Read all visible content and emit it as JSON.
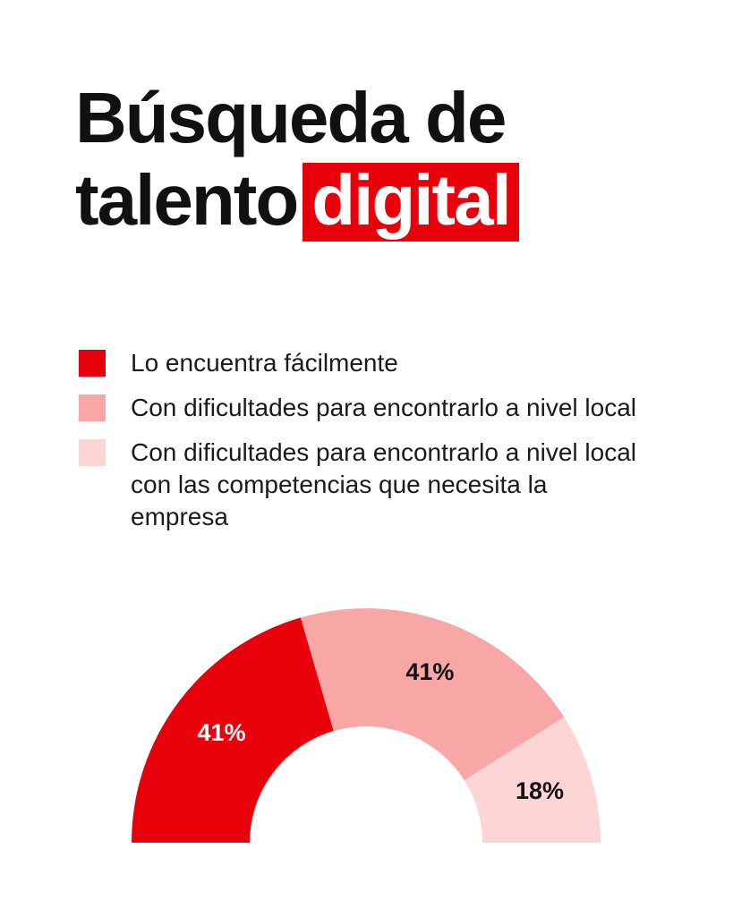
{
  "title": {
    "line1": "Búsqueda de",
    "line2_plain": "talento",
    "line2_highlight": "digital"
  },
  "colors": {
    "accent": "#e8000b",
    "medium": "#f9a6a6",
    "light": "#fdd5d5"
  },
  "legend": [
    {
      "label": "Lo encuentra fácilmente",
      "color": "#e8000b"
    },
    {
      "label": "Con dificultades para encontrarlo a nivel local",
      "color": "#f9a6a6"
    },
    {
      "label": "Con dificultades para encontrarlo a nivel local con las competencias que necesita la empresa",
      "color": "#fdd5d5"
    }
  ],
  "chart_data": {
    "type": "pie",
    "variant": "semi-donut",
    "categories": [
      "Lo encuentra fácilmente",
      "Con dificultades para encontrarlo a nivel local",
      "Con dificultades para encontrarlo a nivel local con las competencias que necesita la empresa"
    ],
    "values": [
      41,
      41,
      18
    ],
    "labels": [
      "41%",
      "41%",
      "18%"
    ],
    "colors": [
      "#e8000b",
      "#f9a6a6",
      "#fdd5d5"
    ]
  }
}
